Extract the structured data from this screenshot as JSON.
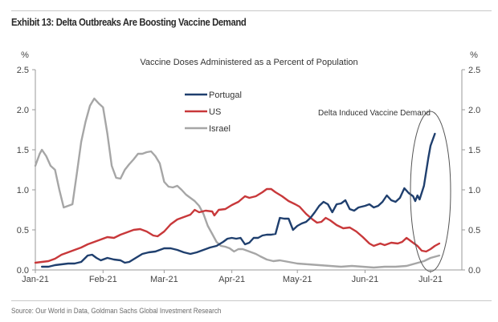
{
  "header": {
    "title": "Exhibit 13: Delta Outbreaks Are Boosting Vaccine Demand"
  },
  "footer": {
    "source": "Source: Our World in Data, Goldman Sachs Global Investment Research"
  },
  "chart_data": {
    "type": "line",
    "title": "Vaccine Doses Administered as a Percent of Population",
    "xlabel": "",
    "ylabel": "%",
    "ylabel_right": "%",
    "x_unit": "day of 2021 (Jan 1 = 0)",
    "xlim": [
      0,
      200
    ],
    "ylim": [
      0,
      2.5
    ],
    "y_ticks": [
      "0.0",
      "0.5",
      "1.0",
      "1.5",
      "2.0",
      "2.5"
    ],
    "y_tick_values": [
      0,
      0.5,
      1.0,
      1.5,
      2.0,
      2.5
    ],
    "x_ticks": [
      "Jan-21",
      "Feb-21",
      "Mar-21",
      "Apr-21",
      "May-21",
      "Jun-21",
      "Jul-21"
    ],
    "x_tick_values": [
      0,
      31,
      59,
      90,
      120,
      151,
      181
    ],
    "grid": false,
    "legend_position": "top-center",
    "annotation": {
      "text": "Delta Induced Vaccine Demand",
      "highlight": "ellipse around late Jun-21 to early Jul-21"
    },
    "series": [
      {
        "name": "Portugal",
        "color": "#1f3f6e",
        "points": [
          [
            3,
            0.04
          ],
          [
            6,
            0.04
          ],
          [
            9,
            0.06
          ],
          [
            12,
            0.07
          ],
          [
            15,
            0.08
          ],
          [
            18,
            0.08
          ],
          [
            21,
            0.1
          ],
          [
            24,
            0.18
          ],
          [
            26,
            0.19
          ],
          [
            28,
            0.15
          ],
          [
            30,
            0.12
          ],
          [
            33,
            0.15
          ],
          [
            36,
            0.13
          ],
          [
            39,
            0.12
          ],
          [
            41,
            0.09
          ],
          [
            43,
            0.1
          ],
          [
            46,
            0.15
          ],
          [
            49,
            0.2
          ],
          [
            52,
            0.22
          ],
          [
            55,
            0.23
          ],
          [
            59,
            0.27
          ],
          [
            62,
            0.27
          ],
          [
            65,
            0.25
          ],
          [
            68,
            0.22
          ],
          [
            71,
            0.2
          ],
          [
            74,
            0.22
          ],
          [
            77,
            0.25
          ],
          [
            80,
            0.28
          ],
          [
            83,
            0.3
          ],
          [
            86,
            0.35
          ],
          [
            88,
            0.39
          ],
          [
            90,
            0.4
          ],
          [
            92,
            0.39
          ],
          [
            94,
            0.4
          ],
          [
            96,
            0.32
          ],
          [
            98,
            0.34
          ],
          [
            100,
            0.4
          ],
          [
            102,
            0.4
          ],
          [
            104,
            0.43
          ],
          [
            106,
            0.44
          ],
          [
            108,
            0.44
          ],
          [
            110,
            0.45
          ],
          [
            112,
            0.65
          ],
          [
            114,
            0.64
          ],
          [
            116,
            0.64
          ],
          [
            118,
            0.5
          ],
          [
            120,
            0.55
          ],
          [
            122,
            0.58
          ],
          [
            124,
            0.6
          ],
          [
            126,
            0.65
          ],
          [
            128,
            0.72
          ],
          [
            130,
            0.8
          ],
          [
            132,
            0.85
          ],
          [
            134,
            0.82
          ],
          [
            136,
            0.72
          ],
          [
            138,
            0.82
          ],
          [
            140,
            0.83
          ],
          [
            142,
            0.87
          ],
          [
            144,
            0.76
          ],
          [
            146,
            0.74
          ],
          [
            148,
            0.78
          ],
          [
            151,
            0.8
          ],
          [
            153,
            0.82
          ],
          [
            155,
            0.78
          ],
          [
            157,
            0.8
          ],
          [
            159,
            0.85
          ],
          [
            161,
            0.93
          ],
          [
            163,
            0.87
          ],
          [
            165,
            0.85
          ],
          [
            167,
            0.9
          ],
          [
            169,
            1.02
          ],
          [
            171,
            0.96
          ],
          [
            173,
            0.92
          ],
          [
            174,
            0.86
          ],
          [
            175,
            0.93
          ],
          [
            176,
            0.88
          ],
          [
            178,
            1.05
          ],
          [
            180,
            1.4
          ],
          [
            181,
            1.55
          ],
          [
            183,
            1.7
          ]
        ]
      },
      {
        "name": "US",
        "color": "#c8383a",
        "points": [
          [
            0,
            0.09
          ],
          [
            3,
            0.1
          ],
          [
            6,
            0.11
          ],
          [
            9,
            0.14
          ],
          [
            12,
            0.19
          ],
          [
            15,
            0.22
          ],
          [
            18,
            0.25
          ],
          [
            21,
            0.28
          ],
          [
            24,
            0.32
          ],
          [
            27,
            0.35
          ],
          [
            30,
            0.38
          ],
          [
            33,
            0.41
          ],
          [
            36,
            0.4
          ],
          [
            39,
            0.44
          ],
          [
            42,
            0.47
          ],
          [
            45,
            0.5
          ],
          [
            48,
            0.51
          ],
          [
            51,
            0.48
          ],
          [
            54,
            0.43
          ],
          [
            56,
            0.42
          ],
          [
            59,
            0.48
          ],
          [
            62,
            0.57
          ],
          [
            65,
            0.63
          ],
          [
            68,
            0.66
          ],
          [
            71,
            0.69
          ],
          [
            73,
            0.75
          ],
          [
            75,
            0.72
          ],
          [
            78,
            0.74
          ],
          [
            81,
            0.73
          ],
          [
            82,
            0.68
          ],
          [
            84,
            0.75
          ],
          [
            87,
            0.76
          ],
          [
            90,
            0.81
          ],
          [
            93,
            0.85
          ],
          [
            96,
            0.92
          ],
          [
            98,
            0.9
          ],
          [
            101,
            0.92
          ],
          [
            104,
            0.97
          ],
          [
            106,
            1.01
          ],
          [
            108,
            1.01
          ],
          [
            110,
            0.97
          ],
          [
            113,
            0.92
          ],
          [
            116,
            0.86
          ],
          [
            119,
            0.82
          ],
          [
            121,
            0.79
          ],
          [
            124,
            0.7
          ],
          [
            127,
            0.63
          ],
          [
            129,
            0.59
          ],
          [
            131,
            0.6
          ],
          [
            133,
            0.65
          ],
          [
            135,
            0.62
          ],
          [
            138,
            0.56
          ],
          [
            141,
            0.52
          ],
          [
            144,
            0.53
          ],
          [
            147,
            0.48
          ],
          [
            150,
            0.41
          ],
          [
            153,
            0.33
          ],
          [
            155,
            0.3
          ],
          [
            158,
            0.33
          ],
          [
            160,
            0.31
          ],
          [
            163,
            0.34
          ],
          [
            166,
            0.33
          ],
          [
            168,
            0.35
          ],
          [
            170,
            0.4
          ],
          [
            172,
            0.36
          ],
          [
            175,
            0.3
          ],
          [
            177,
            0.24
          ],
          [
            179,
            0.23
          ],
          [
            181,
            0.26
          ],
          [
            183,
            0.3
          ],
          [
            185,
            0.33
          ]
        ]
      },
      {
        "name": "Israel",
        "color": "#a6a6a6",
        "points": [
          [
            0,
            1.3
          ],
          [
            2,
            1.45
          ],
          [
            3,
            1.5
          ],
          [
            5,
            1.42
          ],
          [
            7,
            1.3
          ],
          [
            9,
            1.25
          ],
          [
            11,
            1.0
          ],
          [
            13,
            0.78
          ],
          [
            15,
            0.8
          ],
          [
            17,
            0.82
          ],
          [
            19,
            1.2
          ],
          [
            21,
            1.6
          ],
          [
            23,
            1.85
          ],
          [
            25,
            2.05
          ],
          [
            27,
            2.14
          ],
          [
            29,
            2.08
          ],
          [
            31,
            2.03
          ],
          [
            33,
            1.7
          ],
          [
            35,
            1.3
          ],
          [
            37,
            1.15
          ],
          [
            39,
            1.14
          ],
          [
            41,
            1.25
          ],
          [
            43,
            1.32
          ],
          [
            45,
            1.38
          ],
          [
            47,
            1.45
          ],
          [
            49,
            1.45
          ],
          [
            51,
            1.47
          ],
          [
            53,
            1.48
          ],
          [
            55,
            1.42
          ],
          [
            57,
            1.33
          ],
          [
            59,
            1.1
          ],
          [
            61,
            1.04
          ],
          [
            63,
            1.03
          ],
          [
            65,
            1.05
          ],
          [
            67,
            1.0
          ],
          [
            69,
            0.94
          ],
          [
            71,
            0.9
          ],
          [
            73,
            0.86
          ],
          [
            75,
            0.8
          ],
          [
            77,
            0.7
          ],
          [
            79,
            0.55
          ],
          [
            81,
            0.45
          ],
          [
            83,
            0.35
          ],
          [
            85,
            0.3
          ],
          [
            87,
            0.29
          ],
          [
            89,
            0.27
          ],
          [
            91,
            0.23
          ],
          [
            93,
            0.26
          ],
          [
            95,
            0.26
          ],
          [
            97,
            0.24
          ],
          [
            99,
            0.22
          ],
          [
            101,
            0.2
          ],
          [
            103,
            0.17
          ],
          [
            106,
            0.13
          ],
          [
            109,
            0.11
          ],
          [
            112,
            0.12
          ],
          [
            116,
            0.1
          ],
          [
            120,
            0.08
          ],
          [
            125,
            0.07
          ],
          [
            130,
            0.06
          ],
          [
            135,
            0.05
          ],
          [
            140,
            0.04
          ],
          [
            145,
            0.05
          ],
          [
            150,
            0.04
          ],
          [
            155,
            0.03
          ],
          [
            160,
            0.04
          ],
          [
            165,
            0.04
          ],
          [
            170,
            0.05
          ],
          [
            174,
            0.08
          ],
          [
            178,
            0.11
          ],
          [
            181,
            0.15
          ],
          [
            185,
            0.18
          ]
        ]
      }
    ]
  }
}
